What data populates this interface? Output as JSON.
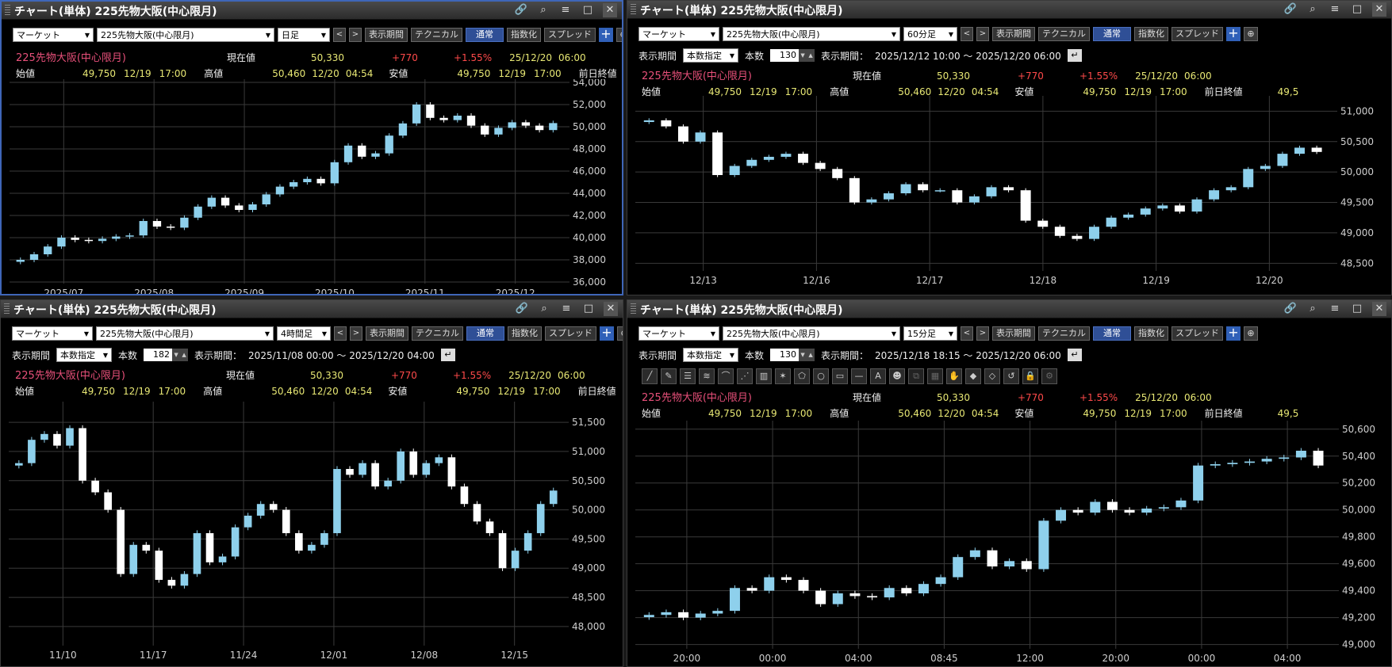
{
  "window_title": "チャート(単体) 225先物大阪(中心限月)",
  "common": {
    "market": "マーケット",
    "symbol": "225先物大阪(中心限月)",
    "buttons": {
      "period": "表示期間",
      "technical": "テクニカル",
      "normal": "通常",
      "index": "指数化",
      "spread": "スプレッド"
    },
    "nav_prev": "<",
    "nav_next": ">",
    "count_mode_label": "表示期間",
    "count_mode": "本数指定",
    "count_label": "本数",
    "range_label": "表示期間：",
    "quote": {
      "name": "225先物大阪(中心限月)",
      "current_label": "現在値",
      "current": "50,330",
      "change": "+770",
      "change_pct": "+1.55%",
      "date": "25/12/20",
      "time": "06:00",
      "open_label": "始値",
      "open": "49,750",
      "open_date": "12/19",
      "open_time": "17:00",
      "high_label": "高値",
      "high": "50,460",
      "high_date": "12/20",
      "high_time": "04:54",
      "low_label": "安値",
      "low": "49,750",
      "low_date": "12/19",
      "low_time": "17:00",
      "prev_label": "前日終値",
      "prev": "49,5"
    }
  },
  "panels": [
    {
      "id": "daily",
      "timeframe": "日足"
    },
    {
      "id": "min60",
      "timeframe": "60分足",
      "count": "130",
      "range": "2025/12/12 10:00 ～ 2025/12/20 06:00"
    },
    {
      "id": "h4",
      "timeframe": "4時間足",
      "count": "182",
      "range": "2025/11/08 00:00 ～ 2025/12/20 04:00"
    },
    {
      "id": "min15",
      "timeframe": "15分足",
      "count": "130",
      "range": "2025/12/18 18:15 ～ 2025/12/20 06:00"
    }
  ],
  "draw_tools": [
    "trend-line",
    "ruler",
    "horizontal-lines",
    "fibonacci",
    "arc",
    "fan",
    "gann",
    "channel",
    "polygon",
    "circle",
    "rectangle",
    "horizontal-line",
    "text",
    "icon",
    "copy",
    "grid",
    "hand",
    "eraser",
    "eraser-all",
    "undo",
    "lock",
    "settings"
  ],
  "draw_text_glyph": "A",
  "colors": {
    "candle": "#8ed0ec",
    "candle_down": "#ffffff",
    "accent": "#3060b8"
  },
  "chart_data": [
    {
      "type": "candlestick",
      "title": "日足",
      "x_ticks": [
        "2025/07",
        "2025/08",
        "2025/09",
        "2025/10",
        "2025/11",
        "2025/12"
      ],
      "y_ticks": [
        "54,000",
        "52,000",
        "50,000",
        "48,000",
        "46,000",
        "44,000",
        "42,000",
        "40,000",
        "38,000",
        "36,000"
      ],
      "ylim": [
        36000,
        54000
      ],
      "close": [
        38000,
        38500,
        39200,
        40000,
        39800,
        39700,
        39900,
        40100,
        40200,
        41500,
        41000,
        40900,
        41800,
        42800,
        43600,
        42900,
        42500,
        43000,
        43900,
        44600,
        45000,
        45300,
        44900,
        46800,
        48300,
        47300,
        47600,
        49200,
        50300,
        52000,
        50800,
        50600,
        51000,
        50100,
        49300,
        49900,
        50400,
        50100,
        49700,
        50330
      ]
    },
    {
      "type": "candlestick",
      "title": "60分足",
      "x_ticks": [
        "12/13",
        "12/16",
        "12/17",
        "12/18",
        "12/19",
        "12/20"
      ],
      "y_ticks": [
        "51,000",
        "50,500",
        "50,000",
        "49,500",
        "49,000",
        "48,500"
      ],
      "ylim": [
        48400,
        51200
      ],
      "close": [
        50850,
        50750,
        50500,
        50650,
        49950,
        50100,
        50200,
        50250,
        50300,
        50150,
        50050,
        49900,
        49500,
        49550,
        49650,
        49800,
        49700,
        49700,
        49500,
        49600,
        49750,
        49700,
        49200,
        49100,
        48950,
        48900,
        49100,
        49250,
        49300,
        49400,
        49450,
        49350,
        49550,
        49700,
        49750,
        50050,
        50100,
        50300,
        50400,
        50330
      ]
    },
    {
      "type": "candlestick",
      "title": "4時間足",
      "x_ticks": [
        "11/10",
        "11/17",
        "11/24",
        "12/01",
        "12/08",
        "12/15"
      ],
      "y_ticks": [
        "51,500",
        "51,000",
        "50,500",
        "50,000",
        "49,500",
        "49,000",
        "48,500",
        "48,000"
      ],
      "ylim": [
        47700,
        51800
      ],
      "close": [
        50800,
        51200,
        51300,
        51100,
        51400,
        50500,
        50300,
        50000,
        48900,
        49400,
        49300,
        48800,
        48700,
        48900,
        49600,
        49100,
        49200,
        49700,
        49900,
        50100,
        50000,
        49600,
        49300,
        49400,
        49600,
        50700,
        50600,
        50800,
        50400,
        50500,
        51000,
        50600,
        50800,
        50900,
        50400,
        50100,
        49800,
        49600,
        49000,
        49300,
        49600,
        50100,
        50330
      ]
    },
    {
      "type": "candlestick",
      "title": "15分足",
      "x_ticks": [
        "20:00",
        "00:00",
        "04:00",
        "08:45",
        "12:00",
        "20:00",
        "00:00",
        "04:00"
      ],
      "y_ticks": [
        "50,600",
        "50,400",
        "50,200",
        "50,000",
        "49,800",
        "49,600",
        "49,400",
        "49,200",
        "49,000"
      ],
      "ylim": [
        48980,
        50640
      ],
      "close": [
        49220,
        49240,
        49200,
        49230,
        49250,
        49420,
        49400,
        49500,
        49480,
        49400,
        49300,
        49380,
        49360,
        49350,
        49420,
        49380,
        49450,
        49500,
        49650,
        49700,
        49580,
        49620,
        49560,
        49920,
        50000,
        49980,
        50060,
        50000,
        49980,
        50010,
        50020,
        50070,
        50330,
        50340,
        50350,
        50360,
        50380,
        50390,
        50440,
        50330
      ]
    }
  ]
}
